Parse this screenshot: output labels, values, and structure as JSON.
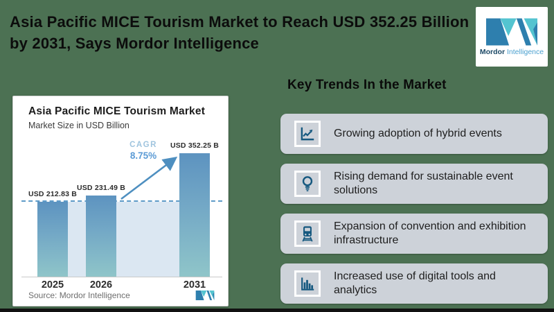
{
  "page": {
    "title": "Asia Pacific MICE Tourism Market to Reach USD 352.25 Billion by 2031, Says Mordor Intelligence",
    "background_color": "#4c7153"
  },
  "brand": {
    "name_bold": "Mordor",
    "name_light": "Intelligence",
    "colors": {
      "blue": "#2e7fae",
      "teal": "#54c4d0",
      "text_dark": "#1c4966",
      "text_light": "#4aa0cf"
    }
  },
  "chart_card": {
    "title": "Asia Pacific MICE Tourism Market",
    "subtitle": "Market Size in USD Billion",
    "cagr_label": "CAGR",
    "cagr_value": "8.75%",
    "source": "Source: Mordor Intelligence"
  },
  "chart_data": {
    "type": "bar",
    "title": "Asia Pacific MICE Tourism Market",
    "subtitle": "Market Size in USD Billion",
    "unit": "USD Billion",
    "categories": [
      "2025",
      "2026",
      "2031"
    ],
    "values": [
      212.83,
      231.49,
      352.25
    ],
    "bar_labels": [
      "USD 212.83 B",
      "USD 231.49 B",
      "USD 352.25 B"
    ],
    "cagr_percent": 8.75,
    "annotations": [
      "CAGR 8.75% arrow from 2026 bar to 2031 bar",
      "dashed reference line at 2025 level"
    ],
    "ylim": [
      0,
      352.25
    ],
    "grid": false,
    "legend": false,
    "colors": {
      "bar_top": "#5d93c0",
      "bar_bottom": "#8fc5c9",
      "band": "#dbe7f2",
      "dash_line": "#5e9bc8",
      "arrow": "#4e8fc0"
    }
  },
  "trends": {
    "heading": "Key Trends In the Market",
    "items": [
      {
        "icon": "growth-chart-icon",
        "text": "Growing adoption of hybrid events"
      },
      {
        "icon": "lightbulb-icon",
        "text": "Rising demand for sustainable event solutions"
      },
      {
        "icon": "train-icon",
        "text": "Expansion of convention and exhibition infrastructure"
      },
      {
        "icon": "bar-chart-icon",
        "text": "Increased use of digital tools and analytics"
      }
    ]
  }
}
